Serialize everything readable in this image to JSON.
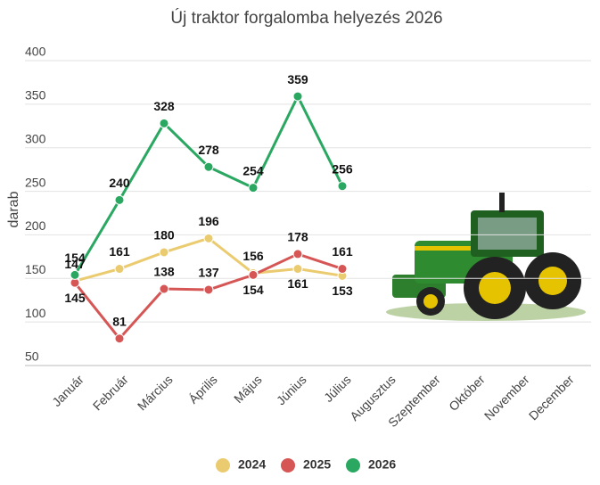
{
  "chart_data": {
    "type": "line",
    "title": "Új traktor forgalomba helyezés 2026",
    "y_label": "darab",
    "categories": [
      "Január",
      "Február",
      "Március",
      "Április",
      "Május",
      "Június",
      "Július",
      "Augusztus",
      "Szeptember",
      "Október",
      "November",
      "December"
    ],
    "series": [
      {
        "name": "2024",
        "color": "#ebcb6f",
        "values": [
          147,
          161,
          180,
          196,
          156,
          161,
          153,
          null,
          null,
          null,
          null,
          null
        ]
      },
      {
        "name": "2025",
        "color": "#d65656",
        "values": [
          145,
          81,
          138,
          137,
          154,
          178,
          161,
          null,
          null,
          null,
          null,
          null
        ]
      },
      {
        "name": "2026",
        "color": "#2aa862",
        "values": [
          154,
          240,
          328,
          278,
          254,
          359,
          256,
          null,
          null,
          null,
          null,
          null
        ]
      }
    ],
    "ylim": [
      50,
      400
    ],
    "yticks": [
      50,
      100,
      150,
      200,
      250,
      300,
      350,
      400
    ],
    "grid": true,
    "legend": "bottom"
  }
}
